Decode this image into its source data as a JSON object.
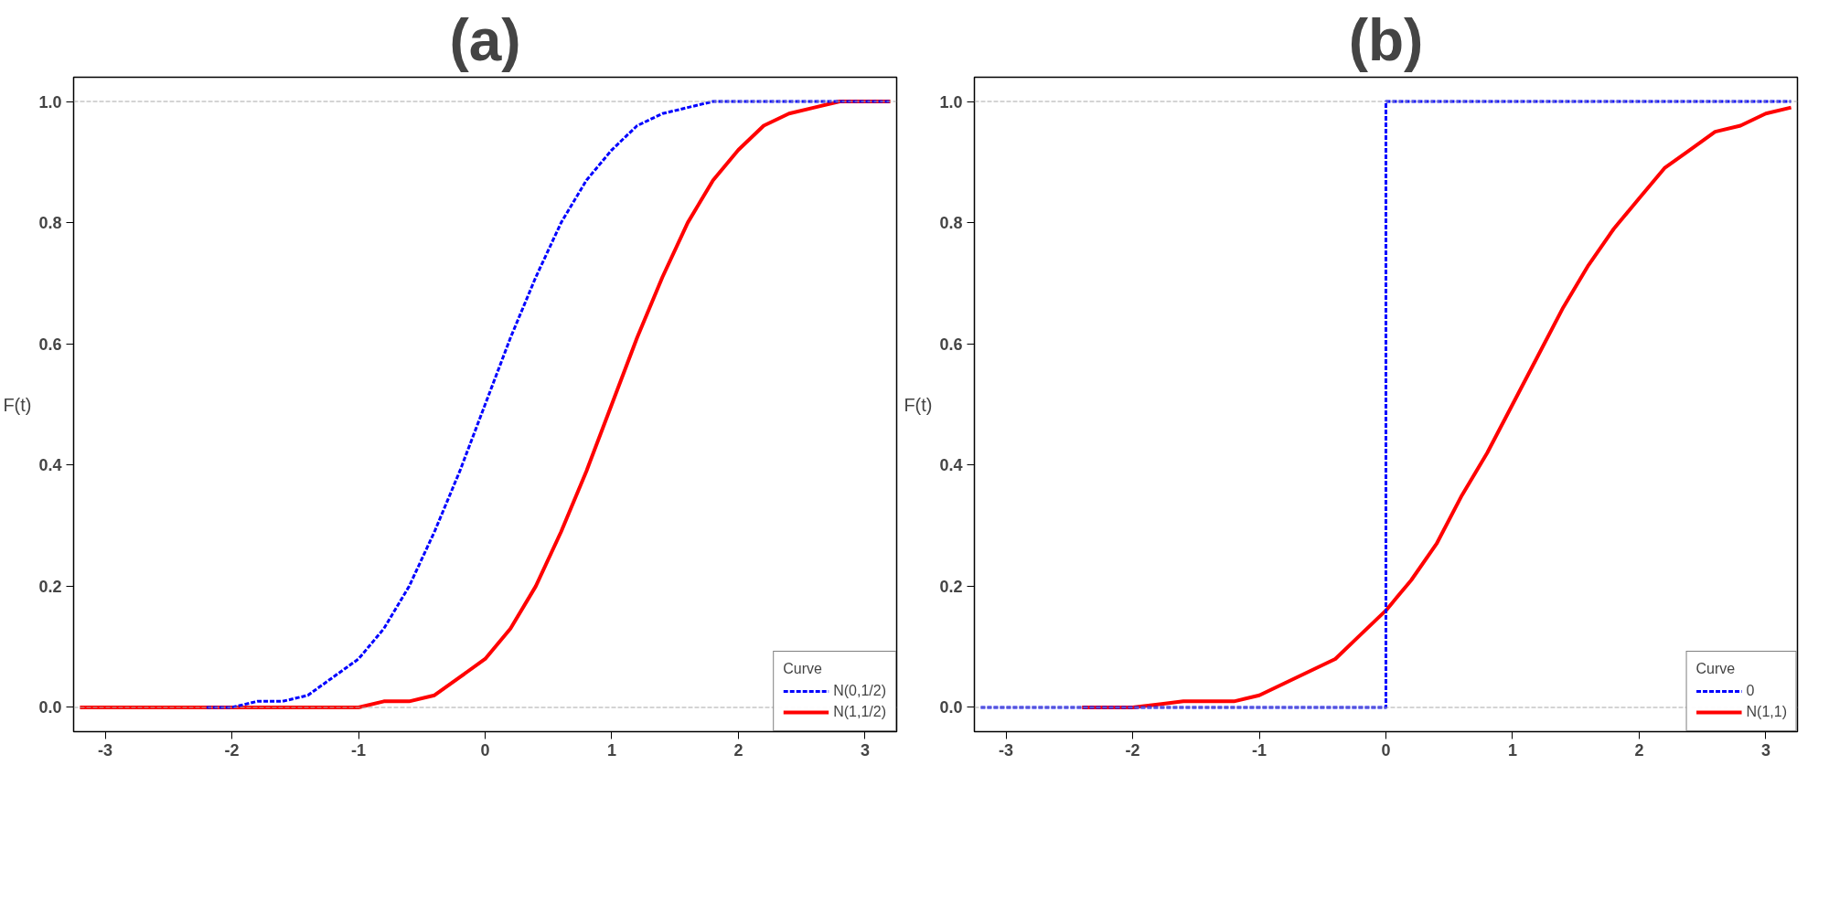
{
  "chart_data": [
    {
      "type": "line",
      "title": "(a)",
      "ylabel": "F(t)",
      "xlim": [
        -3.25,
        3.25
      ],
      "ylim": [
        -0.04,
        1.04
      ],
      "xticks": [
        -3,
        -2,
        -1,
        0,
        1,
        2,
        3
      ],
      "yticks": [
        {
          "value": 0,
          "label": "0.0"
        },
        {
          "value": 0.2,
          "label": "0.2"
        },
        {
          "value": 0.4,
          "label": "0.4"
        },
        {
          "value": 0.6,
          "label": "0.6"
        },
        {
          "value": 0.8,
          "label": "0.8"
        },
        {
          "value": 1,
          "label": "1.0"
        }
      ],
      "grid": false,
      "legend": "bottom right",
      "legend_title": "Curve",
      "marker": "none",
      "ref_lines": [
        {
          "axis": "y",
          "value": 0,
          "color": "#aaaaaa",
          "line_style": "dashed"
        },
        {
          "axis": "y",
          "value": 1,
          "color": "#aaaaaa",
          "line_style": "dashed"
        }
      ],
      "series": [
        {
          "name": "N(0,1/2)",
          "color": "#0000ff",
          "line_style": "dashed",
          "x": [
            -2.2,
            -2.0,
            -1.8,
            -1.6,
            -1.4,
            -1.2,
            -1.0,
            -0.8,
            -0.6,
            -0.4,
            -0.2,
            0,
            0.2,
            0.4,
            0.6,
            0.8,
            1.0,
            1.2,
            1.4,
            1.6,
            1.8,
            2.0,
            2.2,
            2.4,
            2.8,
            3.2
          ],
          "values": [
            0.0,
            0.0,
            0.01,
            0.01,
            0.02,
            0.05,
            0.08,
            0.13,
            0.2,
            0.29,
            0.39,
            0.5,
            0.61,
            0.71,
            0.8,
            0.87,
            0.92,
            0.96,
            0.98,
            0.99,
            1.0,
            1.0,
            1.0,
            1.0,
            1.0,
            1.0
          ]
        },
        {
          "name": "N(1,1/2)",
          "color": "#ff0000",
          "line_style": "solid",
          "x": [
            -3.2,
            -2.0,
            -1.2,
            -1.0,
            -0.8,
            -0.6,
            -0.4,
            -0.2,
            0,
            0.2,
            0.4,
            0.6,
            0.8,
            1.0,
            1.2,
            1.4,
            1.6,
            1.8,
            2.0,
            2.2,
            2.4,
            2.6,
            2.8,
            3.0,
            3.2
          ],
          "values": [
            0.0,
            0.0,
            0.0,
            0.0,
            0.01,
            0.01,
            0.02,
            0.05,
            0.08,
            0.13,
            0.2,
            0.29,
            0.39,
            0.5,
            0.61,
            0.71,
            0.8,
            0.87,
            0.92,
            0.96,
            0.98,
            0.99,
            1.0,
            1.0,
            1.0
          ]
        }
      ]
    },
    {
      "type": "line",
      "title": "(b)",
      "ylabel": "F(t)",
      "xlim": [
        -3.25,
        3.25
      ],
      "ylim": [
        -0.04,
        1.04
      ],
      "xticks": [
        -3,
        -2,
        -1,
        0,
        1,
        2,
        3
      ],
      "yticks": [
        {
          "value": 0,
          "label": "0.0"
        },
        {
          "value": 0.2,
          "label": "0.2"
        },
        {
          "value": 0.4,
          "label": "0.4"
        },
        {
          "value": 0.6,
          "label": "0.6"
        },
        {
          "value": 0.8,
          "label": "0.8"
        },
        {
          "value": 1,
          "label": "1.0"
        }
      ],
      "grid": false,
      "legend": "bottom right",
      "legend_title": "Curve",
      "marker": "none",
      "ref_lines": [
        {
          "axis": "y",
          "value": 0,
          "color": "#aaaaaa",
          "line_style": "dashed"
        },
        {
          "axis": "y",
          "value": 1,
          "color": "#aaaaaa",
          "line_style": "dashed"
        }
      ],
      "series": [
        {
          "name": "0",
          "color": "#0000ff",
          "line_style": "dashed",
          "x": [
            -3.2,
            0,
            0,
            3.2
          ],
          "values": [
            0,
            0,
            1,
            1
          ]
        },
        {
          "name": "N(1,1)",
          "color": "#ff0000",
          "line_style": "solid",
          "x": [
            -2.4,
            -2.0,
            -1.6,
            -1.2,
            -1.0,
            -0.8,
            -0.6,
            -0.4,
            -0.2,
            0,
            0.2,
            0.4,
            0.6,
            0.8,
            1.0,
            1.2,
            1.4,
            1.6,
            1.8,
            2.0,
            2.2,
            2.4,
            2.6,
            2.8,
            3.0,
            3.2
          ],
          "values": [
            0.0,
            0.0,
            0.01,
            0.01,
            0.02,
            0.04,
            0.06,
            0.08,
            0.12,
            0.16,
            0.21,
            0.27,
            0.35,
            0.42,
            0.5,
            0.58,
            0.66,
            0.73,
            0.79,
            0.84,
            0.89,
            0.92,
            0.95,
            0.96,
            0.98,
            0.99
          ]
        }
      ]
    }
  ]
}
